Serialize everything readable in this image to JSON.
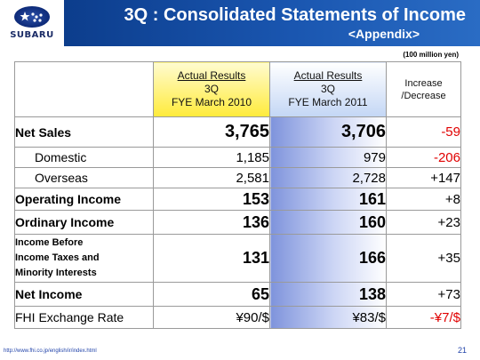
{
  "header": {
    "logo_text": "SUBARU",
    "title": "3Q : Consolidated Statements of Income",
    "subtitle": "<Appendix>"
  },
  "unit_note": "(100 million yen)",
  "columns": {
    "col_2010": {
      "line1": "Actual Results",
      "line2": "3Q",
      "line3": "FYE March 2010"
    },
    "col_2011": {
      "line1": "Actual Results",
      "line2": "3Q",
      "line3": "FYE March 2011"
    },
    "col_change": {
      "line1": "Increase",
      "line2": "/Decrease"
    }
  },
  "rows": [
    {
      "label": "Net Sales",
      "v2010": "3,765",
      "v2011": "3,706",
      "change": "-59"
    },
    {
      "label": "Domestic",
      "v2010": "1,185",
      "v2011": "979",
      "change": "-206"
    },
    {
      "label": "Overseas",
      "v2010": "2,581",
      "v2011": "2,728",
      "change": "+147"
    },
    {
      "label": "Operating Income",
      "v2010": "153",
      "v2011": "161",
      "change": "+8"
    },
    {
      "label": "Ordinary Income",
      "v2010": "136",
      "v2011": "160",
      "change": "+23"
    },
    {
      "label_lines": [
        "Income Before",
        "Income Taxes and",
        "Minority Interests"
      ],
      "v2010": "131",
      "v2011": "166",
      "change": "+35"
    },
    {
      "label": "Net Income",
      "v2010": "65",
      "v2011": "138",
      "change": "+73"
    },
    {
      "label": "FHI Exchange Rate",
      "v2010": "¥90/$",
      "v2011": "¥83/$",
      "change": "-¥7/$"
    }
  ],
  "colors": {
    "title_band": "#1a56b0",
    "negative": "#e00000",
    "highlight_2010": "#ffeb3b",
    "highlight_2011": "#7e93dc"
  },
  "footer": {
    "url": "http://www.fhi.co.jp/english/ir/index.html",
    "page": "21"
  }
}
